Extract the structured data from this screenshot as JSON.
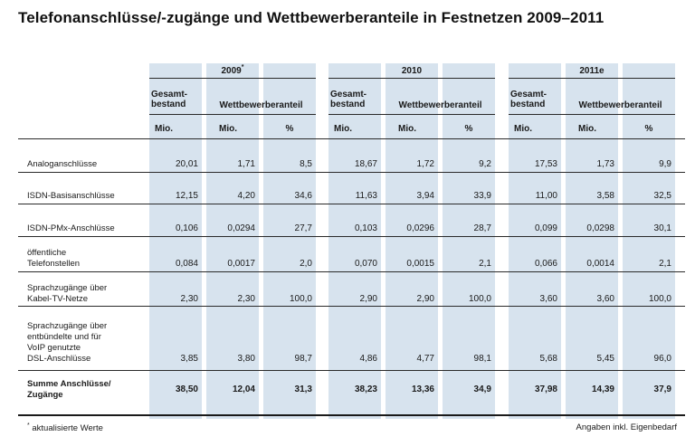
{
  "title": "Telefonanschlüsse/-zugänge und Wettbewerberanteile in Festnetzen 2009–2011",
  "years": [
    {
      "label": "2009",
      "marker": "*"
    },
    {
      "label": "2010",
      "marker": ""
    },
    {
      "label": "2011e",
      "marker": ""
    }
  ],
  "subheads": {
    "gesamt": "Gesamt-\nbestand",
    "wettbewerber": "Wettbewerberanteil"
  },
  "units": {
    "mio": "Mio.",
    "pct": "%"
  },
  "rows": [
    {
      "label": "Analoganschlüsse",
      "values": [
        "20,01",
        "1,71",
        "8,5",
        "18,67",
        "1,72",
        "9,2",
        "17,53",
        "1,73",
        "9,9"
      ]
    },
    {
      "label": "ISDN-Basisanschlüsse",
      "values": [
        "12,15",
        "4,20",
        "34,6",
        "11,63",
        "3,94",
        "33,9",
        "11,00",
        "3,58",
        "32,5"
      ]
    },
    {
      "label": "ISDN-PMx-Anschlüsse",
      "values": [
        "0,106",
        "0,0294",
        "27,7",
        "0,103",
        "0,0296",
        "28,7",
        "0,099",
        "0,0298",
        "30,1"
      ]
    },
    {
      "label": "öffentliche\nTelefonstellen",
      "values": [
        "0,084",
        "0,0017",
        "2,0",
        "0,070",
        "0,0015",
        "2,1",
        "0,066",
        "0,0014",
        "2,1"
      ]
    },
    {
      "label": "Sprachzugänge über\nKabel-TV-Netze",
      "values": [
        "2,30",
        "2,30",
        "100,0",
        "2,90",
        "2,90",
        "100,0",
        "3,60",
        "3,60",
        "100,0"
      ]
    },
    {
      "label": "Sprachzugänge über\nentbündelte und für\nVoIP genutzte\nDSL-Anschlüsse",
      "values": [
        "3,85",
        "3,80",
        "98,7",
        "4,86",
        "4,77",
        "98,1",
        "5,68",
        "5,45",
        "96,0"
      ]
    }
  ],
  "total": {
    "label": "Summe Anschlüsse/\nZugänge",
    "values": [
      "38,50",
      "12,04",
      "31,3",
      "38,23",
      "13,36",
      "34,9",
      "37,98",
      "14,39",
      "37,9"
    ]
  },
  "footnote_left": {
    "marker": "*",
    "text": "aktualisierte Werte"
  },
  "footnote_right": "Angaben inkl. Eigenbedarf"
}
